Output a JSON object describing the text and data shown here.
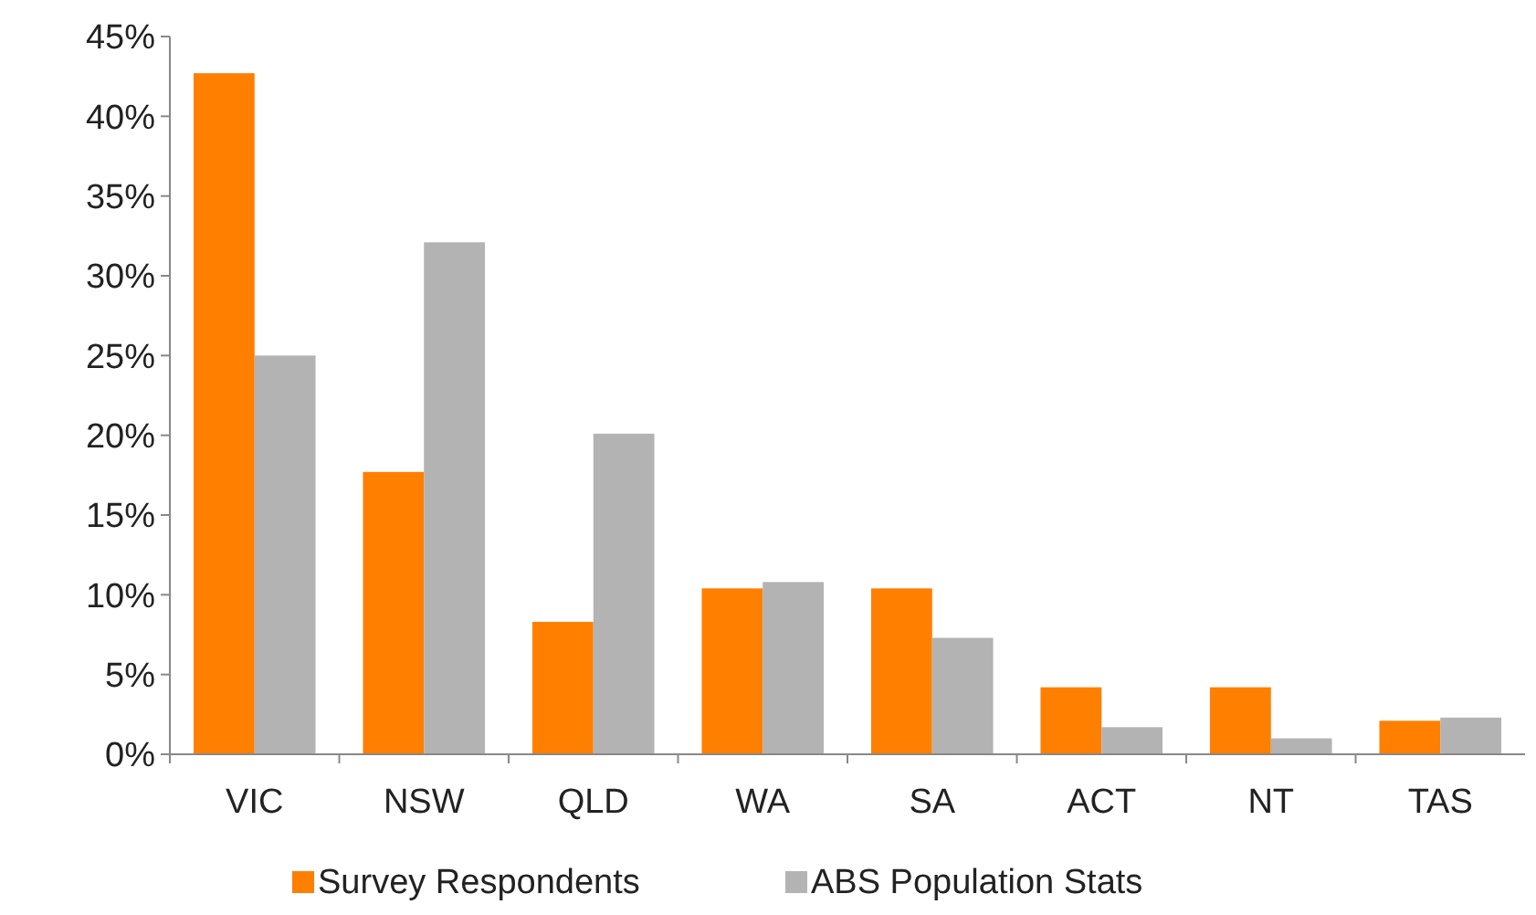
{
  "chart_data": {
    "type": "bar",
    "categories": [
      "VIC",
      "NSW",
      "QLD",
      "WA",
      "SA",
      "ACT",
      "NT",
      "TAS"
    ],
    "series": [
      {
        "name": "Survey Respondents",
        "color": "#ff7f00",
        "values": [
          42.7,
          17.7,
          8.3,
          10.4,
          10.4,
          4.2,
          4.2,
          2.1
        ]
      },
      {
        "name": "ABS Population Stats",
        "color": "#b3b3b3",
        "values": [
          25.0,
          32.1,
          20.1,
          10.8,
          7.3,
          1.7,
          1.0,
          2.3
        ]
      }
    ],
    "ylim": [
      0,
      45
    ],
    "yticks": [
      {
        "value": 0,
        "label": "0%"
      },
      {
        "value": 5,
        "label": "5%"
      },
      {
        "value": 10,
        "label": "10%"
      },
      {
        "value": 15,
        "label": "15%"
      },
      {
        "value": 20,
        "label": "20%"
      },
      {
        "value": 25,
        "label": "25%"
      },
      {
        "value": 30,
        "label": "30%"
      },
      {
        "value": 35,
        "label": "35%"
      },
      {
        "value": 40,
        "label": "40%"
      },
      {
        "value": 45,
        "label": "45%"
      }
    ],
    "grid": false,
    "legend": "bottom"
  }
}
